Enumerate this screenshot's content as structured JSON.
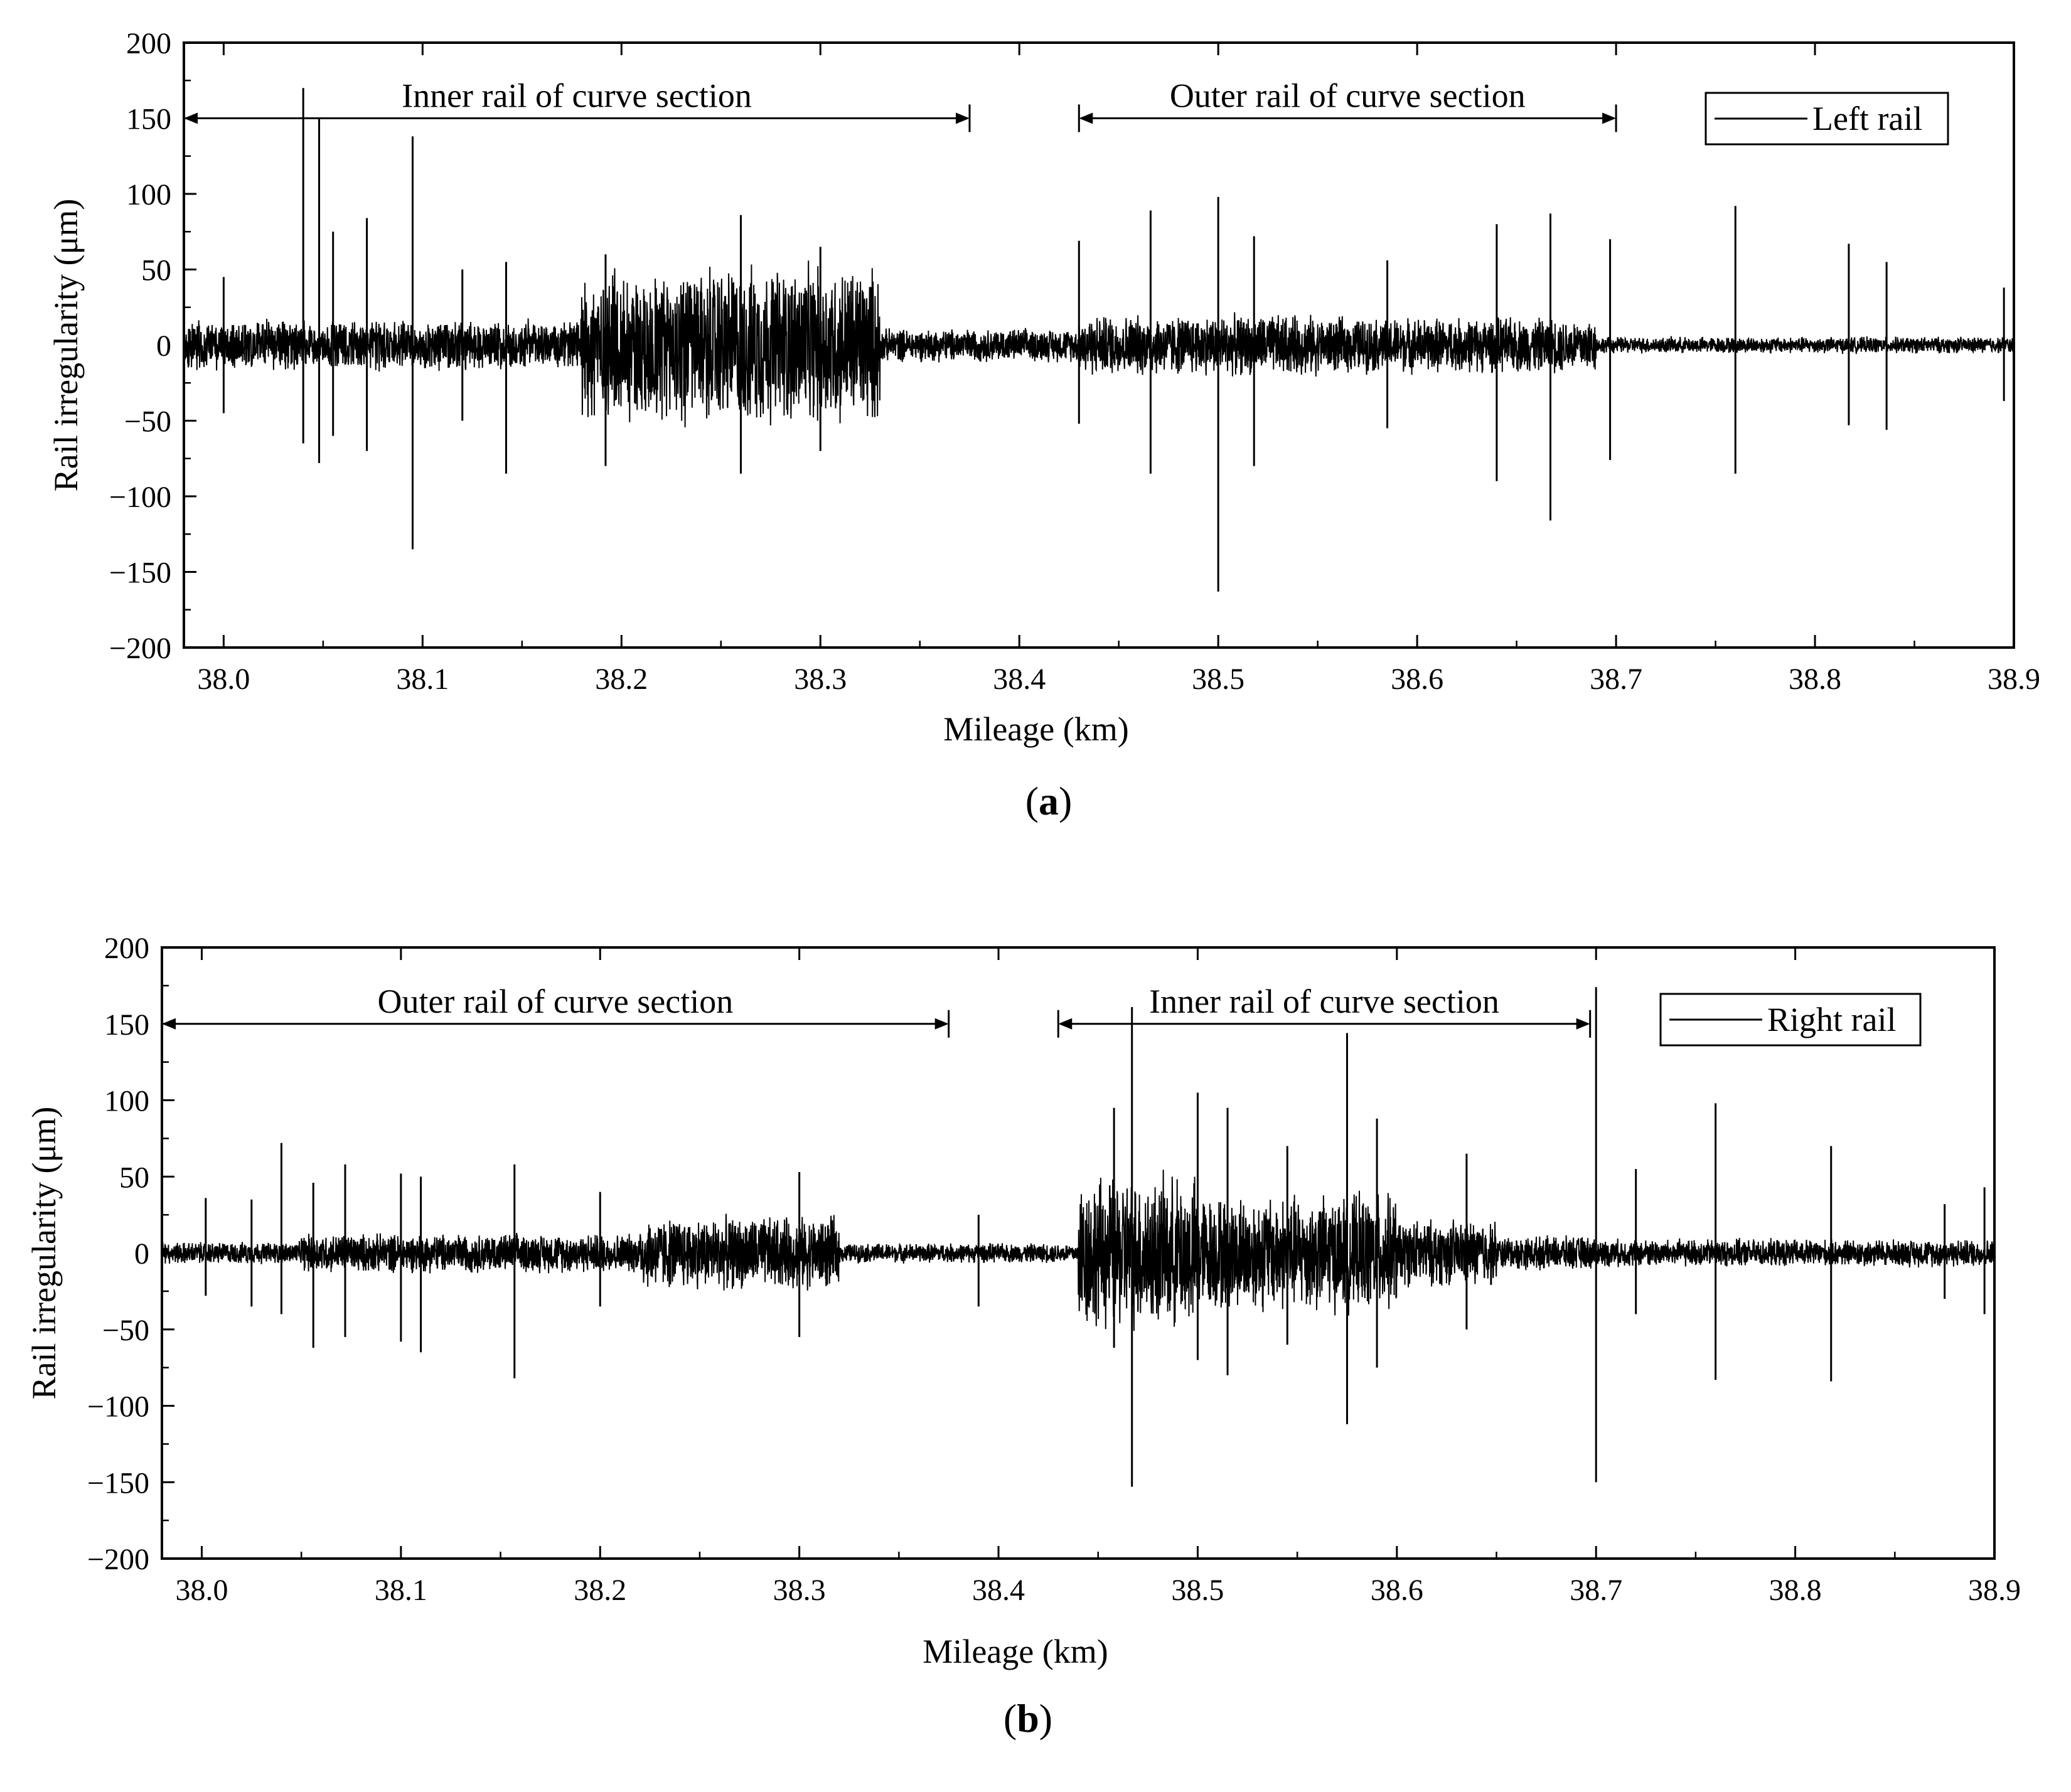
{
  "chart_data": [
    {
      "type": "line",
      "panel_label_open": "(",
      "panel_label_letter": "a",
      "panel_label_close": ")",
      "xlabel": "Mileage (km)",
      "ylabel": "Rail irregularity (μm)",
      "xlim": [
        37.98,
        38.9
      ],
      "ylim": [
        -200,
        200
      ],
      "x_ticks": [
        38.0,
        38.1,
        38.2,
        38.3,
        38.4,
        38.5,
        38.6,
        38.7,
        38.8,
        38.9
      ],
      "x_tick_labels": [
        "38.0",
        "38.1",
        "38.2",
        "38.3",
        "38.4",
        "38.5",
        "38.6",
        "38.7",
        "38.8",
        "38.9"
      ],
      "y_ticks": [
        -200,
        -150,
        -100,
        -50,
        0,
        50,
        100,
        150,
        200
      ],
      "y_tick_labels": [
        "−200",
        "−150",
        "−100",
        "−50",
        "0",
        "50",
        "100",
        "150",
        "200"
      ],
      "legend": {
        "position": "top-right",
        "entries": [
          "Left rail"
        ]
      },
      "series": [
        {
          "name": "Left rail",
          "color": "#000000",
          "baseline_amplitude": 6,
          "segments": [
            {
              "x_start": 37.98,
              "x_end": 38.18,
              "amplitude": 18
            },
            {
              "x_start": 38.18,
              "x_end": 38.33,
              "amplitude": 58
            },
            {
              "x_start": 38.33,
              "x_end": 38.43,
              "amplitude": 12
            },
            {
              "x_start": 38.43,
              "x_end": 38.55,
              "amplitude": 22
            },
            {
              "x_start": 38.55,
              "x_end": 38.69,
              "amplitude": 20
            },
            {
              "x_start": 38.69,
              "x_end": 38.9,
              "amplitude": 6
            }
          ],
          "spikes": [
            [
              38.0,
              45,
              -45
            ],
            [
              38.04,
              170,
              -65
            ],
            [
              38.048,
              150,
              -78
            ],
            [
              38.055,
              75,
              -60
            ],
            [
              38.072,
              84,
              -70
            ],
            [
              38.095,
              138,
              -135
            ],
            [
              38.12,
              50,
              -50
            ],
            [
              38.142,
              55,
              -85
            ],
            [
              38.192,
              60,
              -80
            ],
            [
              38.26,
              86,
              -85
            ],
            [
              38.3,
              65,
              -70
            ],
            [
              38.43,
              69,
              -52
            ],
            [
              38.466,
              89,
              -85
            ],
            [
              38.5,
              98,
              -163
            ],
            [
              38.518,
              72,
              -80
            ],
            [
              38.585,
              56,
              -55
            ],
            [
              38.64,
              80,
              -90
            ],
            [
              38.667,
              87,
              -116
            ],
            [
              38.697,
              70,
              -76
            ],
            [
              38.76,
              92,
              -85
            ],
            [
              38.817,
              67,
              -53
            ],
            [
              38.836,
              55,
              -56
            ],
            [
              38.895,
              38,
              -37
            ]
          ]
        }
      ],
      "annotations": [
        {
          "text": "Inner rail of curve section",
          "x_start": 37.98,
          "x_end": 38.375,
          "y": 150
        },
        {
          "text": "Outer rail of curve section",
          "x_start": 38.43,
          "x_end": 38.7,
          "y": 150
        }
      ]
    },
    {
      "type": "line",
      "panel_label_open": "(",
      "panel_label_letter": "b",
      "panel_label_close": ")",
      "xlabel": "Mileage (km)",
      "ylabel": "Rail irregularity (μm)",
      "xlim": [
        37.98,
        38.9
      ],
      "ylim": [
        -200,
        200
      ],
      "x_ticks": [
        38.0,
        38.1,
        38.2,
        38.3,
        38.4,
        38.5,
        38.6,
        38.7,
        38.8,
        38.9
      ],
      "x_tick_labels": [
        "38.0",
        "38.1",
        "38.2",
        "38.3",
        "38.4",
        "38.5",
        "38.6",
        "38.7",
        "38.8",
        "38.9"
      ],
      "y_ticks": [
        -200,
        -150,
        -100,
        -50,
        0,
        50,
        100,
        150,
        200
      ],
      "y_tick_labels": [
        "−200",
        "−150",
        "−100",
        "−50",
        "0",
        "50",
        "100",
        "150",
        "200"
      ],
      "legend": {
        "position": "top-right",
        "entries": [
          "Right rail"
        ]
      },
      "series": [
        {
          "name": "Right rail",
          "color": "#000000",
          "baseline_amplitude": 6,
          "segments": [
            {
              "x_start": 37.98,
              "x_end": 38.05,
              "amplitude": 8
            },
            {
              "x_start": 38.05,
              "x_end": 38.22,
              "amplitude": 14
            },
            {
              "x_start": 38.22,
              "x_end": 38.32,
              "amplitude": 26
            },
            {
              "x_start": 38.32,
              "x_end": 38.44,
              "amplitude": 7
            },
            {
              "x_start": 38.44,
              "x_end": 38.5,
              "amplitude": 55
            },
            {
              "x_start": 38.5,
              "x_end": 38.6,
              "amplitude": 42
            },
            {
              "x_start": 38.6,
              "x_end": 38.65,
              "amplitude": 24
            },
            {
              "x_start": 38.65,
              "x_end": 38.7,
              "amplitude": 12
            },
            {
              "x_start": 38.7,
              "x_end": 38.9,
              "amplitude": 10
            }
          ],
          "spikes": [
            [
              38.002,
              36,
              -28
            ],
            [
              38.025,
              35,
              -35
            ],
            [
              38.04,
              72,
              -40
            ],
            [
              38.056,
              46,
              -62
            ],
            [
              38.072,
              58,
              -55
            ],
            [
              38.1,
              52,
              -58
            ],
            [
              38.11,
              50,
              -65
            ],
            [
              38.157,
              58,
              -82
            ],
            [
              38.2,
              40,
              -35
            ],
            [
              38.3,
              53,
              -55
            ],
            [
              38.39,
              25,
              -35
            ],
            [
              38.458,
              95,
              -62
            ],
            [
              38.467,
              161,
              -153
            ],
            [
              38.5,
              105,
              -70
            ],
            [
              38.515,
              95,
              -80
            ],
            [
              38.545,
              70,
              -60
            ],
            [
              38.575,
              144,
              -112
            ],
            [
              38.59,
              88,
              -75
            ],
            [
              38.635,
              65,
              -50
            ],
            [
              38.7,
              174,
              -150
            ],
            [
              38.72,
              55,
              -40
            ],
            [
              38.76,
              98,
              -83
            ],
            [
              38.818,
              70,
              -84
            ],
            [
              38.875,
              32,
              -30
            ],
            [
              38.895,
              43,
              -40
            ]
          ]
        }
      ],
      "annotations": [
        {
          "text": "Outer rail of curve section",
          "x_start": 37.98,
          "x_end": 38.375,
          "y": 150
        },
        {
          "text": "Inner rail of curve section",
          "x_start": 38.43,
          "x_end": 38.697,
          "y": 150
        }
      ]
    }
  ]
}
